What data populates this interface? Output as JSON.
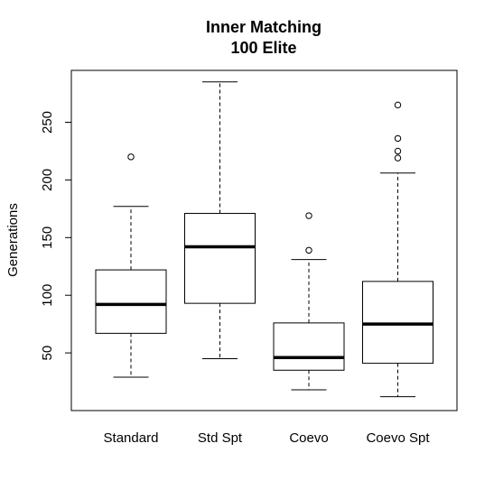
{
  "chart_data": {
    "type": "boxplot",
    "title": "Inner Matching",
    "subtitle": "100 Elite",
    "xlabel": "",
    "ylabel": "Generations",
    "ylim": [
      0,
      295
    ],
    "yticks": [
      50,
      100,
      150,
      200,
      250
    ],
    "grid": false,
    "categories": [
      "Standard",
      "Std Spt",
      "Coevo",
      "Coevo Spt"
    ],
    "boxes": [
      {
        "category": "Standard",
        "whisker_low": 29,
        "q1": 67,
        "median": 92,
        "q3": 122,
        "whisker_high": 177,
        "outliers": [
          220
        ]
      },
      {
        "category": "Std Spt",
        "whisker_low": 45,
        "q1": 93,
        "median": 142,
        "q3": 171,
        "whisker_high": 285,
        "outliers": []
      },
      {
        "category": "Coevo",
        "whisker_low": 18,
        "q1": 35,
        "median": 46,
        "q3": 76,
        "whisker_high": 131,
        "outliers": [
          139,
          169
        ]
      },
      {
        "category": "Coevo Spt",
        "whisker_low": 12,
        "q1": 41,
        "median": 75,
        "q3": 112,
        "whisker_high": 206,
        "outliers": [
          219,
          225,
          236,
          265
        ]
      }
    ]
  }
}
